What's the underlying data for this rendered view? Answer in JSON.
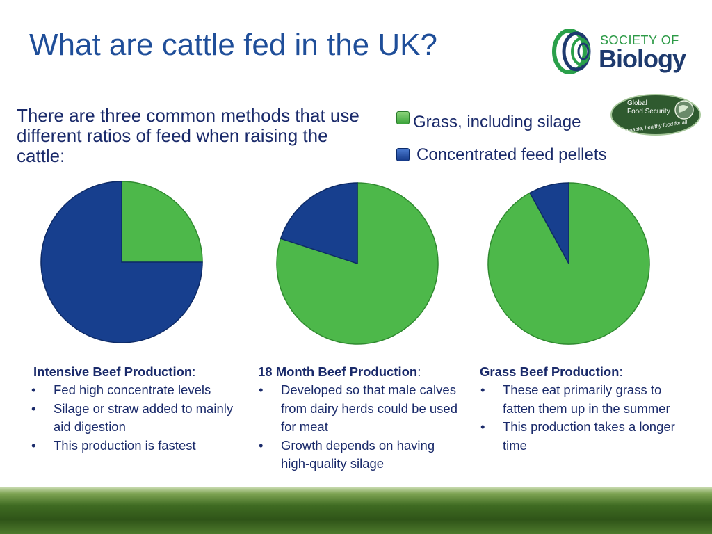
{
  "slide": {
    "title": "What are cattle fed in the UK?",
    "intro": "There are three common methods that use different ratios of feed when raising the cattle:"
  },
  "logo": {
    "line1": "SOCIETY OF",
    "line2": "Biology"
  },
  "gfs_badge": {
    "line1": "Global",
    "line2": "Food Security",
    "tagline": "Sustainable, healthy food for all"
  },
  "legend": {
    "grass_label": "Grass, including silage",
    "concentrate_label": "Concentrated feed pellets"
  },
  "colors": {
    "grass": "#4db84a",
    "concentrate": "#173f8e",
    "title": "#1f4e99"
  },
  "chart_data": [
    {
      "type": "pie",
      "title": "",
      "labels": [
        "Grass, including silage",
        "Concentrated feed pellets"
      ],
      "values": [
        25,
        75
      ]
    },
    {
      "type": "pie",
      "title": "",
      "labels": [
        "Grass, including silage",
        "Concentrated feed pellets"
      ],
      "values": [
        80,
        20
      ]
    },
    {
      "type": "pie",
      "title": "",
      "labels": [
        "Grass, including silage",
        "Concentrated feed pellets"
      ],
      "values": [
        92,
        8
      ]
    }
  ],
  "columns": [
    {
      "heading": "Intensive Beef Production",
      "colon": ":",
      "bullets": [
        "Fed high concentrate levels",
        "Silage or straw added to mainly aid digestion",
        "This production is fastest"
      ]
    },
    {
      "heading": "18 Month Beef Production",
      "colon": ":",
      "bullets": [
        "Developed so that male calves from dairy herds could be used for meat",
        "Growth depends on having high-quality silage"
      ]
    },
    {
      "heading": "Grass Beef Production",
      "colon": ":",
      "bullets": [
        "These eat primarily grass to fatten them up in the summer",
        "This production takes a longer time"
      ]
    }
  ]
}
